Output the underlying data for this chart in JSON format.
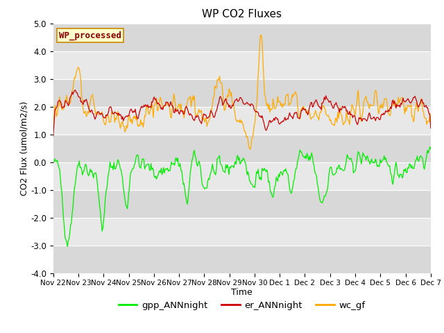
{
  "title": "WP CO2 Fluxes",
  "xlabel": "Time",
  "ylabel": "CO2 Flux (umol/m2/s)",
  "ylim": [
    -4.0,
    5.0
  ],
  "yticks": [
    -4.0,
    -3.0,
    -2.0,
    -1.0,
    0.0,
    1.0,
    2.0,
    3.0,
    4.0,
    5.0
  ],
  "xtick_labels": [
    "Nov 22",
    "Nov 23",
    "Nov 24",
    "Nov 25",
    "Nov 26",
    "Nov 27",
    "Nov 28",
    "Nov 29",
    "Nov 30",
    "Dec 1",
    "Dec 2",
    "Dec 3",
    "Dec 4",
    "Dec 5",
    "Dec 6",
    "Dec 7"
  ],
  "line_colors": {
    "gpp": "#00ee00",
    "er": "#cc0000",
    "wc": "#ffaa00"
  },
  "legend_labels": [
    "gpp_ANNnight",
    "er_ANNnight",
    "wc_gf"
  ],
  "legend_colors": [
    "#00ee00",
    "#cc0000",
    "#ffaa00"
  ],
  "wp_box_text": "WP_processed",
  "wp_box_facecolor": "#ffffcc",
  "wp_box_edgecolor": "#cc8800",
  "wp_text_color": "#880000",
  "background_color": "#ffffff",
  "axes_bg_light": "#e8e8e8",
  "axes_bg_dark": "#d8d8d8",
  "seed": 42,
  "n_points": 480
}
